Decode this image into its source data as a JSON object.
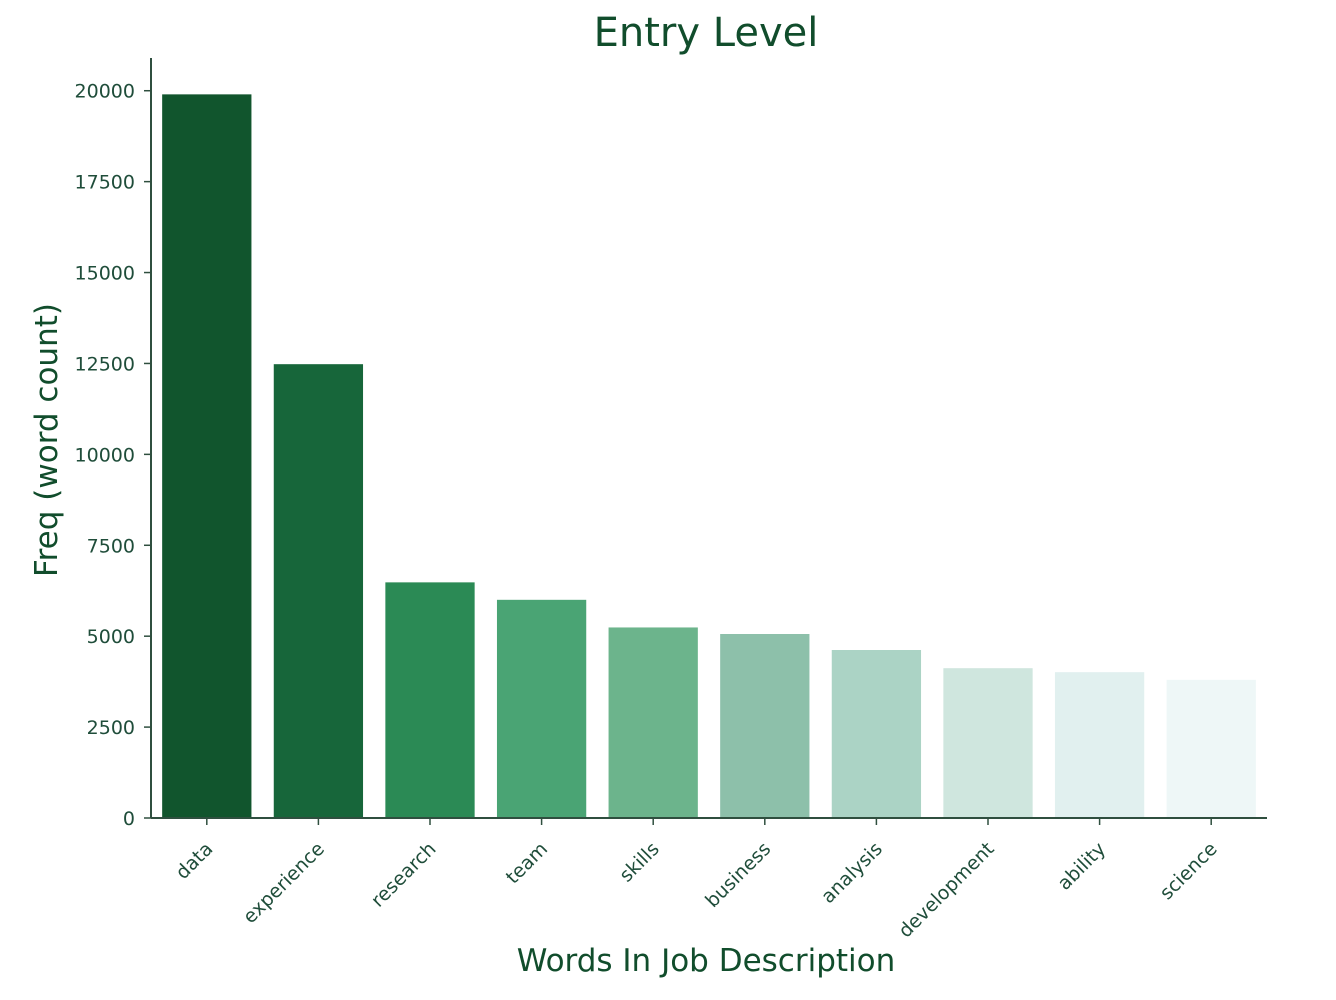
{
  "chart_data": {
    "type": "bar",
    "title": "Entry Level",
    "xlabel": "Words In Job Description",
    "ylabel": "Freq (word count)",
    "categories": [
      "data",
      "experience",
      "research",
      "team",
      "skills",
      "business",
      "analysis",
      "development",
      "ability",
      "science"
    ],
    "values": [
      19900,
      12480,
      6480,
      6000,
      5240,
      5060,
      4620,
      4120,
      4010,
      3800
    ],
    "ylim": [
      0,
      20900
    ],
    "yticks": [
      0,
      2500,
      5000,
      7500,
      10000,
      12500,
      15000,
      17500,
      20000
    ],
    "grid": false,
    "colors": [
      "#11552d",
      "#17663a",
      "#2b8a55",
      "#4aa474",
      "#6cb48c",
      "#8dc0aa",
      "#abd3c5",
      "#cfe6de",
      "#e1f0ef",
      "#eef7f7"
    ]
  }
}
